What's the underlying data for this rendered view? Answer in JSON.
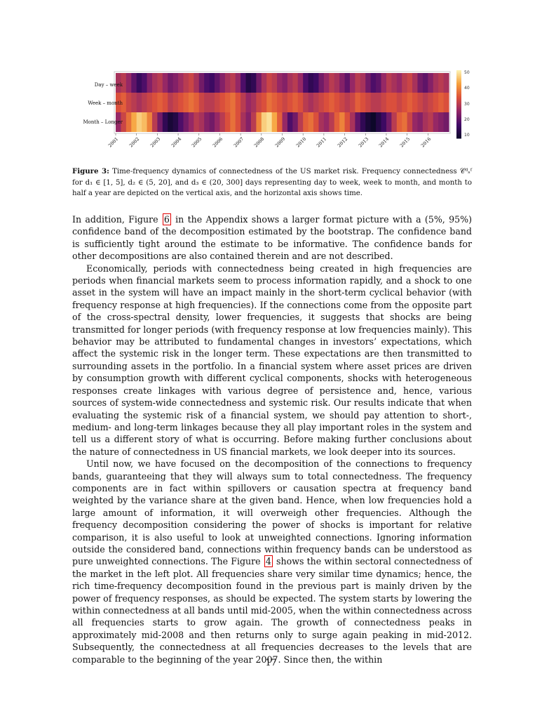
{
  "figure": {
    "row_labels": [
      "Day – week",
      "Week – month",
      "Month – Longer"
    ],
    "year_ticks": [
      "2001",
      "2002",
      "2003",
      "2004",
      "2005",
      "2006",
      "2007",
      "2008",
      "2009",
      "2010",
      "2011",
      "2012",
      "2013",
      "2014",
      "2015",
      "2016"
    ],
    "colorbar_ticks": [
      "50",
      "40",
      "30",
      "20",
      "10"
    ],
    "colors": {
      "low": "#0d0829",
      "mid_low": "#6a176e",
      "mid": "#d1415a",
      "mid_high": "#f6a03b",
      "high": "#fcf4b6"
    }
  },
  "chart_data": {
    "type": "heatmap",
    "rows": [
      "Day – week",
      "Week – month",
      "Month – Longer"
    ],
    "x_range": [
      2001,
      2017
    ],
    "colorbar_range": [
      8,
      52
    ],
    "colorbar_ticks": [
      10,
      20,
      30,
      40,
      50
    ],
    "values": [
      [
        28,
        30,
        26,
        20,
        15,
        18,
        24,
        28,
        30,
        26,
        22,
        24,
        27,
        30,
        32,
        28,
        22,
        18,
        16,
        20,
        24,
        28,
        30,
        26,
        18,
        12,
        14,
        22,
        28,
        32,
        30,
        26,
        24,
        28,
        30,
        26,
        18,
        14,
        16,
        22,
        26,
        30,
        28,
        24,
        20,
        26,
        30,
        28,
        22,
        18,
        20,
        26,
        30,
        28,
        26,
        30,
        32,
        28,
        22,
        20,
        24,
        28,
        30,
        28
      ],
      [
        34,
        36,
        32,
        30,
        28,
        30,
        32,
        34,
        36,
        34,
        30,
        32,
        34,
        36,
        38,
        36,
        32,
        30,
        30,
        32,
        34,
        36,
        38,
        34,
        30,
        26,
        28,
        32,
        34,
        38,
        36,
        34,
        32,
        34,
        36,
        34,
        30,
        28,
        30,
        32,
        34,
        36,
        34,
        32,
        30,
        32,
        36,
        34,
        32,
        30,
        30,
        32,
        34,
        34,
        32,
        34,
        36,
        34,
        32,
        30,
        32,
        34,
        36,
        34
      ],
      [
        26,
        32,
        38,
        44,
        48,
        46,
        40,
        30,
        22,
        14,
        10,
        12,
        18,
        22,
        26,
        30,
        28,
        24,
        22,
        26,
        30,
        34,
        38,
        34,
        28,
        24,
        30,
        40,
        48,
        50,
        44,
        36,
        26,
        18,
        22,
        30,
        36,
        38,
        34,
        28,
        26,
        30,
        36,
        40,
        34,
        28,
        20,
        14,
        10,
        8,
        12,
        16,
        22,
        30,
        36,
        38,
        32,
        26,
        24,
        28,
        30,
        26,
        24,
        22
      ]
    ]
  },
  "caption": {
    "label": "Figure 3:",
    "text": "Time-frequency dynamics of connectedness of the US market risk. Frequency connectedness 𝒞ᵈₛᶠ for d₁ ∈ [1, 5], d₂ ∈ (5, 20], and d₃ ∈ (20, 300] days representing day to week, week to month, and month to half a year are depicted on the vertical axis, and the horizontal axis shows time."
  },
  "body": {
    "p1_a": "In addition, Figure ",
    "p1_ref": "6",
    "p1_b": " in the Appendix shows a larger format picture with a (5%, 95%) confidence band of the decomposition estimated by the bootstrap. The confidence band is sufficiently tight around the estimate to be informative. The confidence bands for other decompositions are also contained therein and are not described.",
    "p2": "Economically, periods with connectedness being created in high frequencies are periods when financial markets seem to process information rapidly, and a shock to one asset in the system will have an impact mainly in the short-term cyclical behavior (with frequency response at high frequencies). If the connections come from the opposite part of the cross-spectral density, lower frequencies, it suggests that shocks are being transmitted for longer periods (with frequency response at low frequencies mainly). This behavior may be attributed to fundamental changes in investors’ expectations, which affect the systemic risk in the longer term. These expectations are then transmitted to surrounding assets in the portfolio. In a financial system where asset prices are driven by consumption growth with different cyclical components, shocks with heterogeneous responses create linkages with various degree of persistence and, hence, various sources of system-wide connectedness and systemic risk. Our results indicate that when evaluating the systemic risk of a financial system, we should pay attention to short-, medium- and long-term linkages because they all play important roles in the system and tell us a different story of what is occurring. Before making further conclusions about the nature of connectedness in US financial markets, we look deeper into its sources.",
    "p3_a": "Until now, we have focused on the decomposition of the connections to frequency bands, guaranteeing that they will always sum to total connectedness. The frequency components are in fact within spillovers or causation spectra at frequency band weighted by the variance share at the given band. Hence, when low frequencies hold a large amount of information, it will overweigh other frequencies. Although the frequency decomposition considering the power of shocks is important for relative comparison, it is also useful to look at unweighted connections. Ignoring information outside the considered band, connections within frequency bands can be understood as pure unweighted connections. The Figure ",
    "p3_ref": "4",
    "p3_b": " shows the within sectoral connectedness of the market in the left plot. All frequencies share very similar time dynamics; hence, the rich time-frequency decomposition found in the previous part is mainly driven by the power of frequency responses, as should be expected. The system starts by lowering the within connectedness at all bands until mid-2005, when the within connectedness across all frequencies starts to grow again. The growth of connectedness peaks in approximately mid-2008 and then returns only to surge again peaking in mid-2012. Subsequently, the connectedness at all frequencies decreases to the levels that are comparable to the beginning of the year 2007. Since then, the within"
  },
  "page_number": "17"
}
